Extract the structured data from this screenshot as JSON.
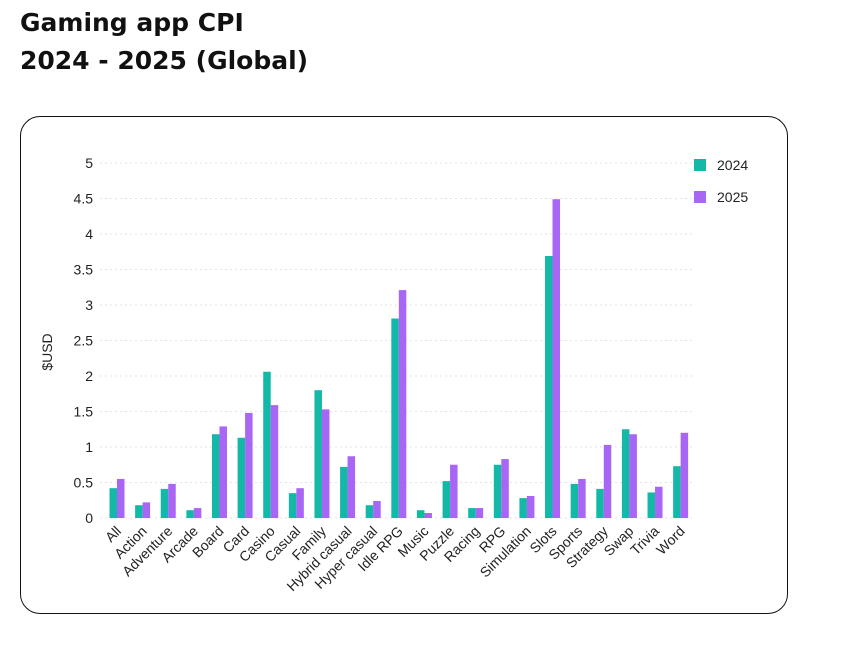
{
  "page": {
    "title_line1": "Gaming app CPI",
    "title_line2": "2024 - 2025 (Global)"
  },
  "chart_data": {
    "type": "bar",
    "title": "Gaming app CPI 2024 - 2025 (Global)",
    "xlabel": "",
    "ylabel": "$USD",
    "ylim": [
      0,
      5
    ],
    "yticks": [
      "0",
      "0.5",
      "1",
      "1.5",
      "2",
      "2.5",
      "3",
      "3.5",
      "4",
      "4.5",
      "5"
    ],
    "grid": true,
    "legend_position": "top-right",
    "categories": [
      "All",
      "Action",
      "Adventure",
      "Arcade",
      "Board",
      "Card",
      "Casino",
      "Casual",
      "Family",
      "Hybrid casual",
      "Hyper casual",
      "Idle RPG",
      "Music",
      "Puzzle",
      "Racing",
      "RPG",
      "Simulation",
      "Slots",
      "Sports",
      "Strategy",
      "Swap",
      "Trivia",
      "Word"
    ],
    "series": [
      {
        "name": "2024",
        "color": "#14b8a6",
        "values": [
          0.42,
          0.18,
          0.41,
          0.11,
          1.18,
          1.13,
          2.06,
          0.35,
          1.8,
          0.72,
          0.18,
          2.81,
          0.11,
          0.52,
          0.14,
          0.75,
          0.28,
          3.69,
          0.48,
          0.41,
          1.25,
          0.36,
          0.73
        ]
      },
      {
        "name": "2025",
        "color": "#a866f5",
        "values": [
          0.55,
          0.22,
          0.48,
          0.14,
          1.29,
          1.48,
          1.59,
          0.42,
          1.53,
          0.87,
          0.24,
          3.21,
          0.07,
          0.75,
          0.14,
          0.83,
          0.31,
          4.49,
          0.55,
          1.03,
          1.18,
          0.44,
          1.2
        ]
      }
    ]
  }
}
